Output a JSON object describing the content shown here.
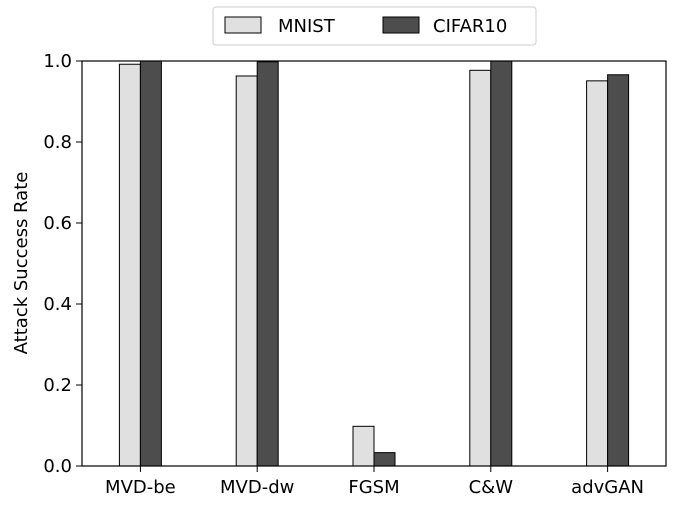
{
  "chart_data": {
    "type": "bar",
    "title": "",
    "xlabel": "",
    "ylabel": "Attack Success Rate",
    "categories": [
      "MVD-be",
      "MVD-dw",
      "FGSM",
      "C&W",
      "advGAN"
    ],
    "series": [
      {
        "name": "MNIST",
        "values": [
          0.992,
          0.963,
          0.098,
          0.977,
          0.951
        ],
        "color": "#e0e0e0"
      },
      {
        "name": "CIFAR10",
        "values": [
          1.0,
          0.998,
          0.033,
          1.0,
          0.966
        ],
        "color": "#4d4d4d"
      }
    ],
    "ylim": [
      0,
      1.0
    ],
    "yticks": [
      "0.0",
      "0.2",
      "0.4",
      "0.6",
      "0.8",
      "1.0"
    ],
    "ytick_values": [
      0.0,
      0.2,
      0.4,
      0.6,
      0.8,
      1.0
    ],
    "grid": false,
    "legend_position": "top-center"
  }
}
